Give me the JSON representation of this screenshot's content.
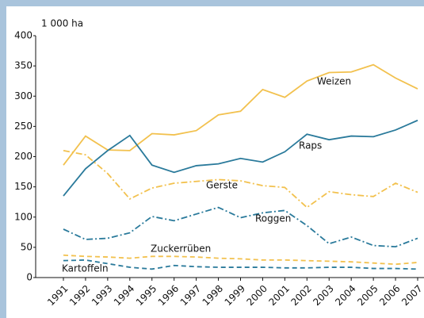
{
  "chart_data": {
    "type": "line",
    "y_axis_label": "1 000 ha",
    "categories": [
      "1991",
      "1992",
      "1993",
      "1994",
      "1995",
      "1996",
      "1997",
      "1998",
      "1999",
      "2000",
      "2001",
      "2002",
      "2003",
      "2004",
      "2005",
      "2006",
      "2007"
    ],
    "ylim": [
      0,
      400
    ],
    "yticks": [
      0,
      50,
      100,
      150,
      200,
      250,
      300,
      350,
      400
    ],
    "grid": false,
    "series": [
      {
        "name": "Weizen",
        "color": "#f2c14e",
        "style": "solid",
        "values": [
          186,
          234,
          211,
          210,
          238,
          236,
          243,
          269,
          275,
          311,
          298,
          325,
          339,
          340,
          352,
          330,
          312
        ]
      },
      {
        "name": "Raps",
        "color": "#2a7a9b",
        "style": "solid",
        "values": [
          135,
          180,
          210,
          235,
          186,
          174,
          185,
          188,
          197,
          191,
          208,
          237,
          228,
          234,
          233,
          244,
          260
        ]
      },
      {
        "name": "Gerste",
        "color": "#f2c14e",
        "style": "dashdot",
        "values": [
          210,
          203,
          172,
          130,
          148,
          156,
          159,
          162,
          160,
          152,
          149,
          116,
          142,
          137,
          134,
          156,
          141
        ]
      },
      {
        "name": "Roggen",
        "color": "#2a7a9b",
        "style": "dashdot",
        "values": [
          80,
          63,
          65,
          74,
          101,
          94,
          105,
          116,
          99,
          107,
          111,
          86,
          56,
          67,
          53,
          51,
          65
        ]
      },
      {
        "name": "Zuckerrüben",
        "color": "#f2c14e",
        "style": "dashed",
        "values": [
          37,
          35,
          34,
          32,
          35,
          35,
          34,
          32,
          31,
          29,
          29,
          28,
          27,
          26,
          24,
          22,
          25
        ]
      },
      {
        "name": "Kartoffeln",
        "color": "#2a7a9b",
        "style": "dashed",
        "values": [
          28,
          29,
          23,
          17,
          14,
          20,
          18,
          17,
          17,
          17,
          16,
          16,
          17,
          17,
          15,
          15,
          14
        ]
      }
    ]
  }
}
